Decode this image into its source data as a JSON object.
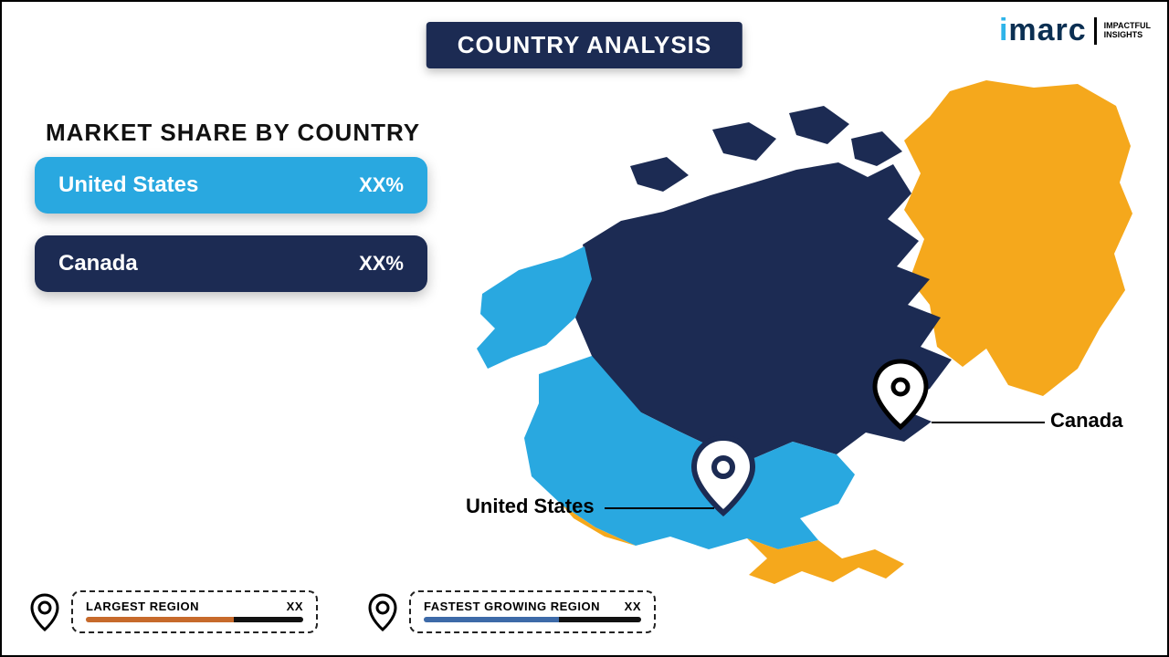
{
  "colors": {
    "navy": "#1c2b53",
    "sky": "#29a8e0",
    "gold": "#f5a81c",
    "orange_bar": "#c76a2b",
    "blue_bar": "#3d6aa8",
    "dark_seg": "#111111",
    "logo_i": "#2fb4e9",
    "logo_text": "#0b2f52"
  },
  "logo": {
    "main": "imarc",
    "sub1": "IMPACTFUL",
    "sub2": "INSIGHTS"
  },
  "title": "COUNTRY ANALYSIS",
  "subtitle": "MARKET  SHARE BY COUNTRY",
  "bars": {
    "us": {
      "name": "United States",
      "value": "XX%"
    },
    "ca": {
      "name": "Canada",
      "value": "XX%"
    }
  },
  "map_labels": {
    "us": "United States",
    "ca": "Canada"
  },
  "legend": {
    "largest": {
      "label": "LARGEST REGION",
      "value": "XX",
      "fill_pct": 68
    },
    "fastest": {
      "label": "FASTEST GROWING REGION",
      "value": "XX",
      "fill_pct": 62
    }
  }
}
